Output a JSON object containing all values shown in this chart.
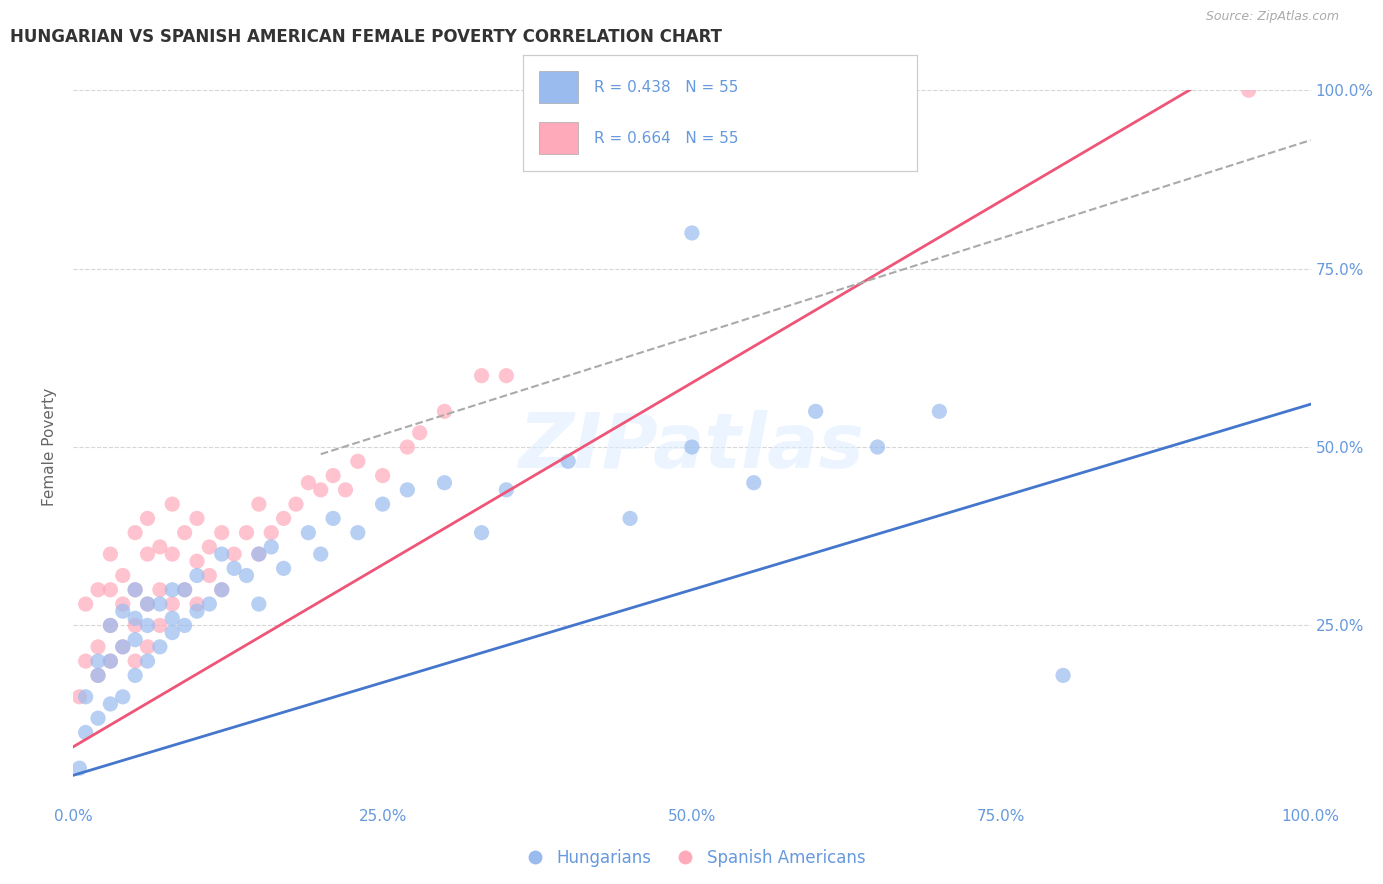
{
  "title": "HUNGARIAN VS SPANISH AMERICAN FEMALE POVERTY CORRELATION CHART",
  "source": "Source: ZipAtlas.com",
  "ylabel": "Female Poverty",
  "watermark": "ZIPatlas",
  "legend_entries": [
    {
      "label": "R = 0.438   N = 55",
      "color": "#aaccee"
    },
    {
      "label": "R = 0.664   N = 55",
      "color": "#ffbbcc"
    }
  ],
  "legend_labels": [
    "Hungarians",
    "Spanish Americans"
  ],
  "blue_scatter_color": "#99bbee",
  "pink_scatter_color": "#ffaabb",
  "blue_line_color": "#4477cc",
  "pink_line_color": "#ee5577",
  "dashed_line_color": "#aaaaaa",
  "background_color": "#ffffff",
  "grid_color": "#cccccc",
  "title_color": "#333333",
  "axis_label_color": "#6699dd",
  "tick_color": "#6699dd",
  "xlim": [
    0,
    1
  ],
  "ylim": [
    0,
    1
  ],
  "xticks": [
    0,
    0.25,
    0.5,
    0.75,
    1.0
  ],
  "yticks": [
    0.25,
    0.5,
    0.75,
    1.0
  ],
  "xticklabels": [
    "0.0%",
    "25.0%",
    "50.0%",
    "75.0%",
    "100.0%"
  ],
  "right_yticklabels": [
    "25.0%",
    "50.0%",
    "75.0%",
    "100.0%"
  ],
  "blue_slope": 0.52,
  "blue_intercept": 0.04,
  "pink_slope": 1.02,
  "pink_intercept": 0.08,
  "dashed_slope": 0.55,
  "dashed_intercept": 0.38,
  "hungarian_x": [
    0.005,
    0.01,
    0.01,
    0.02,
    0.02,
    0.02,
    0.03,
    0.03,
    0.03,
    0.04,
    0.04,
    0.04,
    0.05,
    0.05,
    0.05,
    0.05,
    0.06,
    0.06,
    0.06,
    0.07,
    0.07,
    0.08,
    0.08,
    0.08,
    0.09,
    0.09,
    0.1,
    0.1,
    0.11,
    0.12,
    0.12,
    0.13,
    0.14,
    0.15,
    0.15,
    0.16,
    0.17,
    0.19,
    0.2,
    0.21,
    0.23,
    0.25,
    0.27,
    0.3,
    0.33,
    0.35,
    0.4,
    0.45,
    0.5,
    0.55,
    0.6,
    0.65,
    0.5,
    0.7,
    0.8
  ],
  "hungarian_y": [
    0.05,
    0.1,
    0.15,
    0.12,
    0.18,
    0.2,
    0.14,
    0.2,
    0.25,
    0.15,
    0.22,
    0.27,
    0.18,
    0.23,
    0.26,
    0.3,
    0.2,
    0.25,
    0.28,
    0.22,
    0.28,
    0.24,
    0.3,
    0.26,
    0.25,
    0.3,
    0.27,
    0.32,
    0.28,
    0.3,
    0.35,
    0.33,
    0.32,
    0.35,
    0.28,
    0.36,
    0.33,
    0.38,
    0.35,
    0.4,
    0.38,
    0.42,
    0.44,
    0.45,
    0.38,
    0.44,
    0.48,
    0.4,
    0.5,
    0.45,
    0.55,
    0.5,
    0.8,
    0.55,
    0.18
  ],
  "spanish_x": [
    0.005,
    0.01,
    0.01,
    0.02,
    0.02,
    0.02,
    0.03,
    0.03,
    0.03,
    0.03,
    0.04,
    0.04,
    0.04,
    0.05,
    0.05,
    0.05,
    0.05,
    0.06,
    0.06,
    0.06,
    0.06,
    0.07,
    0.07,
    0.07,
    0.08,
    0.08,
    0.08,
    0.09,
    0.09,
    0.1,
    0.1,
    0.1,
    0.11,
    0.11,
    0.12,
    0.12,
    0.13,
    0.14,
    0.15,
    0.15,
    0.16,
    0.17,
    0.18,
    0.19,
    0.2,
    0.21,
    0.22,
    0.23,
    0.25,
    0.27,
    0.28,
    0.3,
    0.33,
    0.35,
    0.95
  ],
  "spanish_y": [
    0.15,
    0.2,
    0.28,
    0.18,
    0.22,
    0.3,
    0.2,
    0.25,
    0.3,
    0.35,
    0.22,
    0.28,
    0.32,
    0.2,
    0.25,
    0.3,
    0.38,
    0.22,
    0.28,
    0.35,
    0.4,
    0.25,
    0.3,
    0.36,
    0.28,
    0.35,
    0.42,
    0.3,
    0.38,
    0.28,
    0.34,
    0.4,
    0.32,
    0.36,
    0.3,
    0.38,
    0.35,
    0.38,
    0.35,
    0.42,
    0.38,
    0.4,
    0.42,
    0.45,
    0.44,
    0.46,
    0.44,
    0.48,
    0.46,
    0.5,
    0.52,
    0.55,
    0.6,
    0.6,
    1.0
  ]
}
